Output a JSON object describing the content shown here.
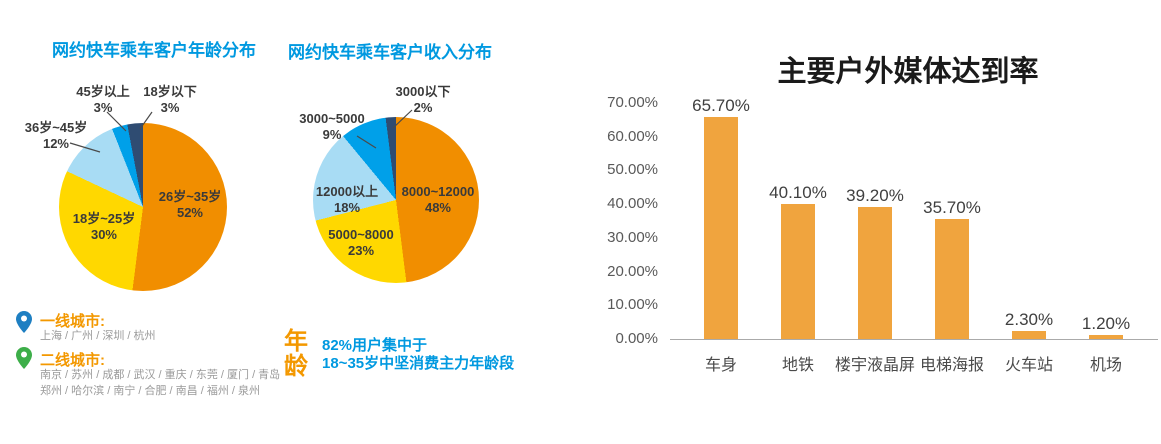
{
  "colors": {
    "title_blue": "#0099E0",
    "accent_orange": "#F39800",
    "tier1_pin": "#1E7FC2",
    "tier2_pin": "#3DAE49",
    "axis_gray": "#AAAAAA"
  },
  "city_legend": {
    "tier1": {
      "label": "一线城市:",
      "cities": "上海 / 广州 / 深圳 / 杭州"
    },
    "tier2": {
      "label": "二线城市:",
      "cities_line1": "南京 / 苏州 / 成都 / 武汉 / 重庆 / 东莞 / 厦门 / 青岛",
      "cities_line2": "郑州 / 哈尔滨 / 南宁 / 合肥 / 南昌 / 福州 / 泉州"
    }
  },
  "age_note": {
    "keyword": "年龄",
    "line1": "82%用户集中于",
    "line2": "18~35岁中坚消费主力年龄段"
  },
  "chart_data": [
    {
      "type": "pie",
      "title": "网约快车乘车客户年龄分布",
      "labels": [
        "26岁~35岁",
        "18岁~25岁",
        "36岁~45岁",
        "45岁以上",
        "18岁以下"
      ],
      "values": [
        52,
        30,
        12,
        3,
        3
      ],
      "pct_labels": [
        "52%",
        "30%",
        "12%",
        "3%",
        "3%"
      ],
      "colors": [
        "#F18E00",
        "#FFD800",
        "#A8DCF4",
        "#00A0E9",
        "#2F4C72"
      ],
      "start_angle": "12-oclock",
      "direction": "clockwise",
      "legend_position": "labels-on-slices"
    },
    {
      "type": "pie",
      "title": "网约快车乘车客户收入分布",
      "labels": [
        "8000~12000",
        "5000~8000",
        "12000以上",
        "3000~5000",
        "3000以下"
      ],
      "values": [
        48,
        23,
        18,
        9,
        2
      ],
      "pct_labels": [
        "48%",
        "23%",
        "18%",
        "9%",
        "2%"
      ],
      "colors": [
        "#F18E00",
        "#FFD800",
        "#A8DCF4",
        "#00A0E9",
        "#2F4C72"
      ],
      "start_angle": "12-oclock",
      "direction": "clockwise",
      "legend_position": "labels-on-slices"
    },
    {
      "type": "bar",
      "title": "主要户外媒体达到率",
      "categories": [
        "车身",
        "地铁",
        "楼宇液晶屏",
        "电梯海报",
        "火车站",
        "机场"
      ],
      "values": [
        65.7,
        40.1,
        39.2,
        35.7,
        2.3,
        1.2
      ],
      "value_labels": [
        "65.70%",
        "40.10%",
        "39.20%",
        "35.70%",
        "2.30%",
        "1.20%"
      ],
      "y_ticks": [
        "70.00%",
        "60.00%",
        "50.00%",
        "40.00%",
        "30.00%",
        "20.00%",
        "10.00%",
        "0.00%"
      ],
      "ylim": [
        0,
        70
      ],
      "xlabel": "",
      "ylabel": "",
      "grid": false,
      "legend_position": "none",
      "bar_color": "#F0A43E"
    }
  ]
}
